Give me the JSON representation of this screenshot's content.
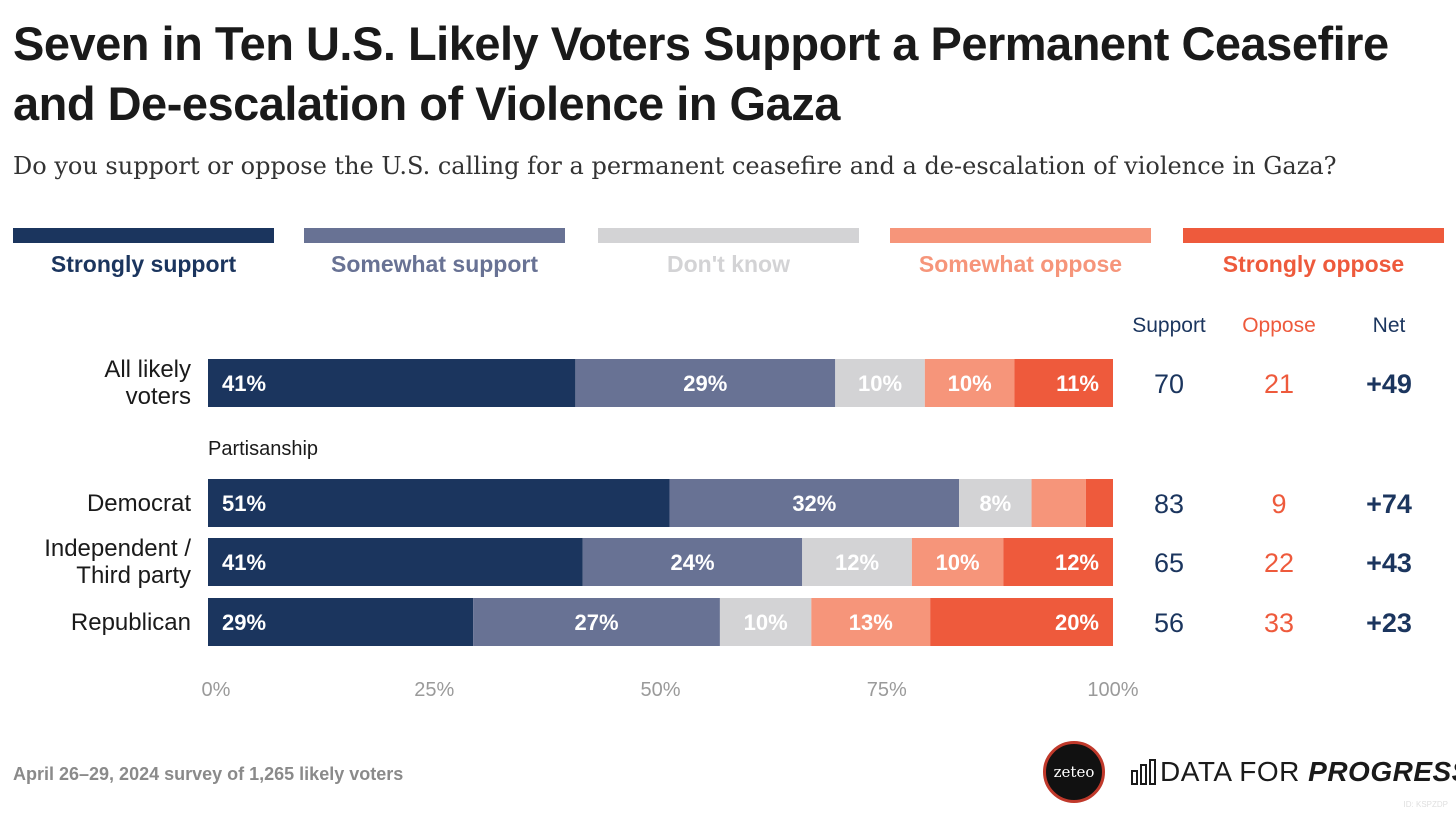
{
  "title": "Seven in Ten U.S. Likely Voters Support a Permanent Ceasefire and De-escalation of Violence in Gaza",
  "subtitle": "Do you support or oppose the U.S. calling for a permanent ceasefire and a de-escalation of violence in Gaza?",
  "legend": [
    {
      "label": "Strongly support",
      "color": "#1b355e"
    },
    {
      "label": "Somewhat support",
      "color": "#687294"
    },
    {
      "label": "Don't know",
      "color": "#d3d3d5"
    },
    {
      "label": "Somewhat oppose",
      "color": "#f6957a"
    },
    {
      "label": "Strongly oppose",
      "color": "#ee5a3c"
    }
  ],
  "columns": {
    "support": {
      "label": "Support",
      "color": "#1b355e"
    },
    "oppose": {
      "label": "Oppose",
      "color": "#ee5a3c"
    },
    "net": {
      "label": "Net",
      "color": "#1b355e"
    }
  },
  "chart_data": {
    "type": "bar",
    "orientation": "horizontal",
    "stacked": true,
    "xlim": [
      0,
      100
    ],
    "x_ticks": [
      "0%",
      "25%",
      "50%",
      "75%",
      "100%"
    ],
    "group_label": "Partisanship",
    "rows": [
      {
        "label": "All likely voters",
        "values": [
          41,
          29,
          10,
          10,
          11
        ],
        "value_labels": [
          "41%",
          "29%",
          "10%",
          "10%",
          "11%"
        ],
        "support": "70",
        "oppose": "21",
        "net": "+49"
      },
      {
        "label": "Democrat",
        "values": [
          51,
          32,
          8,
          6,
          3
        ],
        "value_labels": [
          "51%",
          "32%",
          "8%",
          "",
          ""
        ],
        "support": "83",
        "oppose": "9",
        "net": "+74"
      },
      {
        "label": "Independent / Third party",
        "values": [
          41,
          24,
          12,
          10,
          12
        ],
        "value_labels": [
          "41%",
          "24%",
          "12%",
          "10%",
          "12%"
        ],
        "support": "65",
        "oppose": "22",
        "net": "+43"
      },
      {
        "label": "Republican",
        "values": [
          29,
          27,
          10,
          13,
          20
        ],
        "value_labels": [
          "29%",
          "27%",
          "10%",
          "13%",
          "20%"
        ],
        "support": "56",
        "oppose": "33",
        "net": "+23"
      }
    ]
  },
  "footer": "April 26–29, 2024 survey of 1,265 likely voters",
  "logos": {
    "zeteo": "zeteo",
    "dfp_plain": "DATA FOR ",
    "dfp_bold": "PROGRESS"
  },
  "watermark": "ID: KSPZDP"
}
